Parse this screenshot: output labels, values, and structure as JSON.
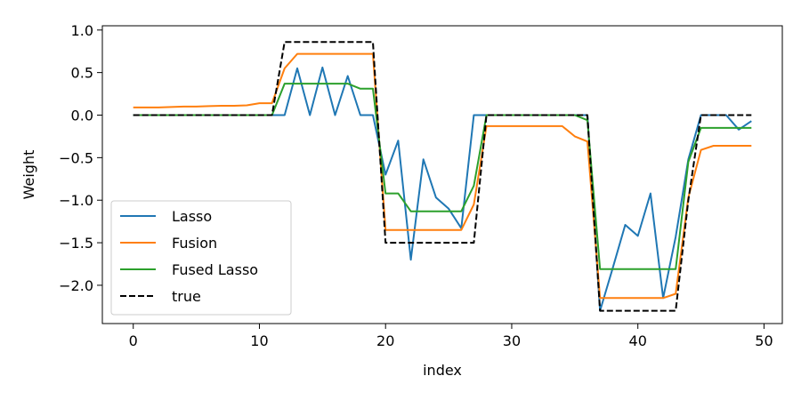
{
  "chart_data": {
    "type": "line",
    "title": "",
    "xlabel": "index",
    "ylabel": "Weight",
    "xlim": [
      -2.45,
      51.45
    ],
    "ylim": [
      -2.45,
      1.05
    ],
    "xticks": [
      0,
      10,
      20,
      30,
      40,
      50
    ],
    "xtick_labels": [
      "0",
      "10",
      "20",
      "30",
      "40",
      "50"
    ],
    "yticks": [
      1.0,
      0.5,
      0.0,
      -0.5,
      -1.0,
      -1.5,
      -2.0
    ],
    "ytick_labels": [
      "1.0",
      "0.5",
      "0.0",
      "−0.5",
      "−1.0",
      "−1.5",
      "−2.0"
    ],
    "grid": false,
    "legend_position": "lower-left",
    "x": [
      0,
      1,
      2,
      3,
      4,
      5,
      6,
      7,
      8,
      9,
      10,
      11,
      12,
      13,
      14,
      15,
      16,
      17,
      18,
      19,
      20,
      21,
      22,
      23,
      24,
      25,
      26,
      27,
      28,
      29,
      30,
      31,
      32,
      33,
      34,
      35,
      36,
      37,
      38,
      39,
      40,
      41,
      42,
      43,
      44,
      45,
      46,
      47,
      48,
      49
    ],
    "series": [
      {
        "name": "Lasso",
        "color": "#1f77b4",
        "dash": "solid",
        "values": [
          0,
          0,
          0,
          0,
          0,
          0,
          0,
          0,
          0,
          0,
          0,
          0,
          0,
          0.55,
          0,
          0.56,
          0,
          0.46,
          0,
          0,
          -0.7,
          -0.3,
          -1.7,
          -0.52,
          -0.97,
          -1.1,
          -1.33,
          0,
          0,
          0,
          0,
          0,
          0,
          0,
          0,
          0,
          0,
          -2.3,
          -1.8,
          -1.29,
          -1.42,
          -0.92,
          -2.15,
          -1.43,
          -0.52,
          0,
          0,
          0,
          -0.17,
          -0.07
        ]
      },
      {
        "name": "Fusion",
        "color": "#ff7f0e",
        "dash": "solid",
        "values": [
          0.09,
          0.09,
          0.09,
          0.095,
          0.1,
          0.1,
          0.105,
          0.11,
          0.11,
          0.115,
          0.14,
          0.14,
          0.55,
          0.72,
          0.72,
          0.72,
          0.72,
          0.72,
          0.72,
          0.72,
          -1.35,
          -1.35,
          -1.35,
          -1.35,
          -1.35,
          -1.35,
          -1.35,
          -1.05,
          -0.13,
          -0.13,
          -0.13,
          -0.13,
          -0.13,
          -0.13,
          -0.13,
          -0.25,
          -0.31,
          -2.15,
          -2.15,
          -2.15,
          -2.15,
          -2.15,
          -2.15,
          -2.1,
          -0.97,
          -0.41,
          -0.36,
          -0.36,
          -0.36,
          -0.36
        ]
      },
      {
        "name": "Fused Lasso",
        "color": "#2ca02c",
        "dash": "solid",
        "values": [
          0,
          0,
          0,
          0,
          0,
          0,
          0,
          0,
          0,
          0,
          0,
          0,
          0.37,
          0.37,
          0.37,
          0.37,
          0.37,
          0.37,
          0.31,
          0.31,
          -0.92,
          -0.92,
          -1.13,
          -1.13,
          -1.13,
          -1.13,
          -1.13,
          -0.83,
          0,
          0,
          0,
          0,
          0,
          0,
          0,
          0,
          -0.06,
          -1.81,
          -1.81,
          -1.81,
          -1.81,
          -1.81,
          -1.81,
          -1.81,
          -0.55,
          -0.15,
          -0.15,
          -0.15,
          -0.15,
          -0.15
        ]
      },
      {
        "name": "true",
        "color": "#000000",
        "dash": "dashed",
        "values": [
          0,
          0,
          0,
          0,
          0,
          0,
          0,
          0,
          0,
          0,
          0,
          0,
          0.86,
          0.86,
          0.86,
          0.86,
          0.86,
          0.86,
          0.86,
          0.86,
          -1.5,
          -1.5,
          -1.5,
          -1.5,
          -1.5,
          -1.5,
          -1.5,
          -1.5,
          0,
          0,
          0,
          0,
          0,
          0,
          0,
          0,
          0,
          -2.3,
          -2.3,
          -2.3,
          -2.3,
          -2.3,
          -2.3,
          -2.3,
          -1.0,
          0,
          0,
          0,
          0,
          0
        ]
      }
    ]
  }
}
